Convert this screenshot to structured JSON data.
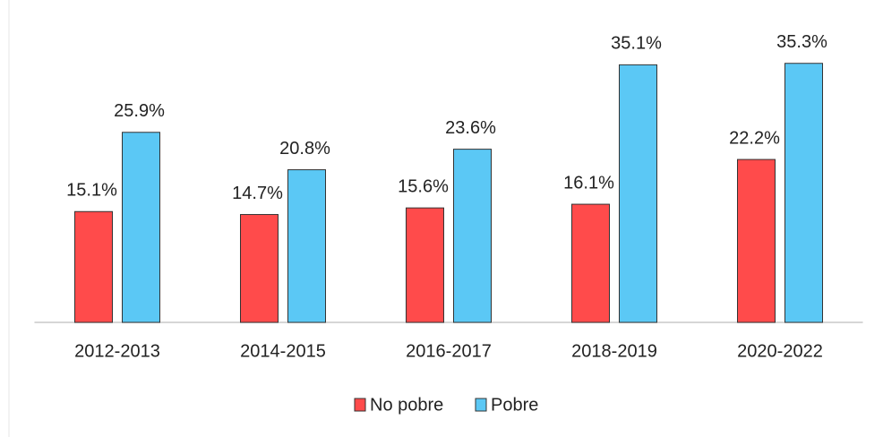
{
  "chart_data": {
    "type": "bar",
    "categories": [
      "2012-2013",
      "2014-2015",
      "2016-2017",
      "2018-2019",
      "2020-2022"
    ],
    "series": [
      {
        "name": "No pobre",
        "color": "#ff4b4b",
        "values": [
          15.1,
          14.7,
          15.6,
          16.1,
          22.2
        ],
        "value_labels": [
          "15.1%",
          "14.7%",
          "15.6%",
          "16.1%",
          "22.2%"
        ]
      },
      {
        "name": "Pobre",
        "color": "#5bc8f5",
        "values": [
          25.9,
          20.8,
          23.6,
          35.1,
          35.3
        ],
        "value_labels": [
          "25.9%",
          "20.8%",
          "23.6%",
          "35.1%",
          "35.3%"
        ]
      }
    ],
    "ylim": [
      0,
      36
    ],
    "legend": "bottom"
  }
}
